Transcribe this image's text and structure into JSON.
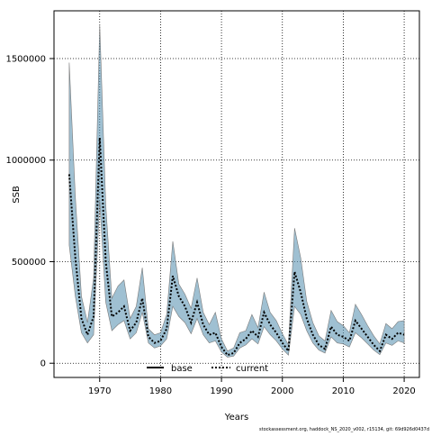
{
  "chart_data": {
    "type": "line",
    "xlabel": "Years",
    "ylabel": "SSB",
    "xlim": [
      1962.5,
      2022.5
    ],
    "ylim": [
      -70000,
      1735000
    ],
    "x_ticks": [
      1970,
      1980,
      1990,
      2000,
      2010,
      2020
    ],
    "y_ticks": [
      0,
      500000,
      1000000,
      1500000
    ],
    "x_tick_labels": [
      "1970",
      "1980",
      "1990",
      "2000",
      "2010",
      "2020"
    ],
    "y_tick_labels": [
      "0",
      "500000",
      "1000000",
      "1500000"
    ],
    "grid": true,
    "legend_position": "bottom-center",
    "legend": [
      "base",
      "current"
    ],
    "footer_note": "stockassessment.org, haddock_NS_2020_v002, r15134, git: 69d926d0437d",
    "colors": {
      "band": "#5f96b4",
      "band_edge": "#7a7a7a",
      "line": "#000000"
    },
    "x": [
      1965,
      1966,
      1967,
      1968,
      1969,
      1970,
      1971,
      1972,
      1973,
      1974,
      1975,
      1976,
      1977,
      1978,
      1979,
      1980,
      1981,
      1982,
      1983,
      1984,
      1985,
      1986,
      1987,
      1988,
      1989,
      1990,
      1991,
      1992,
      1993,
      1994,
      1995,
      1996,
      1997,
      1998,
      1999,
      2000,
      2001,
      2002,
      2003,
      2004,
      2005,
      2006,
      2007,
      2008,
      2009,
      2010,
      2011,
      2012,
      2013,
      2014,
      2015,
      2016,
      2017,
      2018,
      2019,
      2020
    ],
    "series": [
      {
        "name": "current",
        "style": "dotted",
        "values": [
          930000,
          520000,
          220000,
          140000,
          230000,
          1110000,
          500000,
          230000,
          250000,
          280000,
          160000,
          200000,
          320000,
          130000,
          100000,
          110000,
          170000,
          430000,
          330000,
          280000,
          200000,
          300000,
          190000,
          140000,
          150000,
          80000,
          40000,
          50000,
          100000,
          120000,
          160000,
          130000,
          250000,
          190000,
          150000,
          100000,
          60000,
          450000,
          350000,
          220000,
          140000,
          90000,
          70000,
          180000,
          140000,
          130000,
          110000,
          210000,
          170000,
          130000,
          90000,
          60000,
          140000,
          120000,
          150000,
          140000
        ],
        "lower": [
          580000,
          330000,
          150000,
          100000,
          140000,
          800000,
          300000,
          160000,
          190000,
          210000,
          120000,
          150000,
          250000,
          100000,
          75000,
          85000,
          120000,
          280000,
          230000,
          200000,
          145000,
          220000,
          140000,
          100000,
          110000,
          55000,
          30000,
          35000,
          75000,
          90000,
          120000,
          95000,
          180000,
          140000,
          110000,
          70000,
          40000,
          280000,
          240000,
          160000,
          100000,
          65000,
          50000,
          130000,
          100000,
          95000,
          80000,
          150000,
          125000,
          95000,
          65000,
          42000,
          100000,
          88000,
          110000,
          100000
        ],
        "upper": [
          1480000,
          820000,
          330000,
          200000,
          420000,
          1670000,
          780000,
          320000,
          380000,
          410000,
          220000,
          280000,
          470000,
          170000,
          140000,
          150000,
          240000,
          600000,
          390000,
          340000,
          270000,
          420000,
          250000,
          190000,
          250000,
          120000,
          60000,
          75000,
          150000,
          160000,
          240000,
          175000,
          350000,
          250000,
          210000,
          145000,
          90000,
          665000,
          520000,
          305000,
          200000,
          135000,
          110000,
          260000,
          205000,
          185000,
          150000,
          290000,
          240000,
          185000,
          135000,
          95000,
          195000,
          170000,
          205000,
          210000
        ]
      }
    ]
  }
}
